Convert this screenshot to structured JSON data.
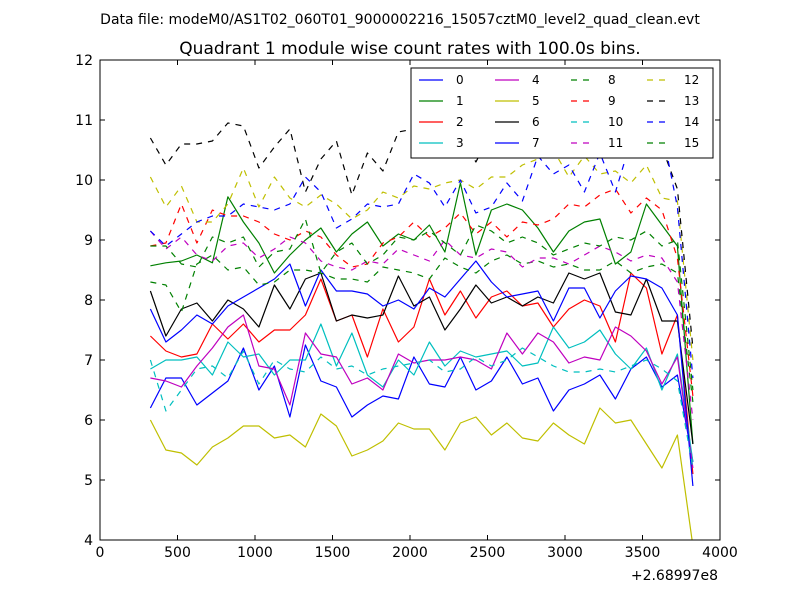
{
  "chart_data": {
    "type": "line",
    "suptitle": "Data file: modeM0/AS1T02_060T01_9000002216_15057cztM0_level2_quad_clean.evt",
    "title": "Quadrant 1 module wise count rates with 100.0s bins.",
    "xlim": [
      0,
      4000
    ],
    "ylim": [
      4,
      12
    ],
    "x_ticks": [
      0,
      500,
      1000,
      1500,
      2000,
      2500,
      3000,
      3500,
      4000
    ],
    "y_ticks": [
      4,
      5,
      6,
      7,
      8,
      9,
      10,
      11,
      12
    ],
    "x_offset_label": "+2.68997e8",
    "grid": false,
    "legend_location": "upper-right",
    "legend_columns": 4,
    "x": [
      325,
      425,
      525,
      625,
      725,
      825,
      925,
      1025,
      1125,
      1225,
      1325,
      1425,
      1525,
      1625,
      1725,
      1825,
      1925,
      2025,
      2125,
      2225,
      2325,
      2425,
      2525,
      2625,
      2725,
      2825,
      2925,
      3025,
      3125,
      3225,
      3325,
      3425,
      3525,
      3625,
      3725,
      3825
    ],
    "series": [
      {
        "name": "0",
        "color": "#0000ff",
        "dash": "solid",
        "values": [
          6.2,
          6.7,
          6.7,
          6.25,
          6.45,
          6.65,
          7.2,
          6.5,
          6.9,
          6.05,
          7.25,
          6.65,
          6.55,
          6.05,
          6.25,
          6.4,
          6.35,
          7.05,
          6.6,
          6.55,
          7.05,
          6.5,
          6.65,
          7.05,
          6.6,
          6.7,
          6.15,
          6.5,
          6.6,
          6.75,
          6.35,
          6.85,
          7.05,
          6.55,
          6.75,
          5.3
        ]
      },
      {
        "name": "1",
        "color": "#008000",
        "dash": "solid",
        "values": [
          8.57,
          8.62,
          8.65,
          8.75,
          8.62,
          9.72,
          9.3,
          8.95,
          8.45,
          8.75,
          9.0,
          9.2,
          8.8,
          9.1,
          9.3,
          8.9,
          9.1,
          9.0,
          9.25,
          8.8,
          9.95,
          8.75,
          9.5,
          9.6,
          9.5,
          9.2,
          8.8,
          9.15,
          9.3,
          9.35,
          8.6,
          8.8,
          9.6,
          9.25,
          8.9,
          5.6
        ]
      },
      {
        "name": "2",
        "color": "#ff0000",
        "dash": "solid",
        "values": [
          7.4,
          7.15,
          7.05,
          7.1,
          7.6,
          7.35,
          7.6,
          7.3,
          7.5,
          7.5,
          7.75,
          8.35,
          7.65,
          7.75,
          7.05,
          7.85,
          7.3,
          7.55,
          8.35,
          7.75,
          8.15,
          7.7,
          8.05,
          8.15,
          7.9,
          7.95,
          7.55,
          7.85,
          8.0,
          7.9,
          7.3,
          8.45,
          8.2,
          7.1,
          7.75,
          5.1
        ]
      },
      {
        "name": "3",
        "color": "#00bfbf",
        "dash": "solid",
        "values": [
          6.85,
          7.0,
          7.0,
          7.05,
          6.75,
          7.3,
          7.05,
          7.1,
          6.75,
          7.0,
          7.0,
          7.6,
          6.9,
          7.45,
          6.75,
          6.55,
          7.0,
          6.75,
          7.3,
          6.9,
          7.15,
          7.05,
          7.1,
          7.15,
          6.9,
          6.95,
          7.55,
          7.2,
          7.3,
          7.5,
          7.1,
          6.85,
          7.2,
          6.5,
          7.1,
          5.3
        ]
      },
      {
        "name": "4",
        "color": "#bf00bf",
        "dash": "solid",
        "values": [
          6.7,
          6.65,
          6.55,
          6.9,
          7.2,
          7.55,
          7.75,
          6.9,
          6.85,
          6.25,
          7.45,
          7.1,
          7.05,
          6.6,
          6.7,
          6.5,
          7.1,
          6.95,
          7.0,
          7.0,
          7.05,
          7.0,
          6.85,
          7.45,
          7.1,
          7.45,
          7.3,
          6.95,
          7.05,
          7.0,
          7.55,
          7.4,
          7.15,
          6.6,
          7.05,
          5.2
        ]
      },
      {
        "name": "5",
        "color": "#bfbf00",
        "dash": "solid",
        "values": [
          6.0,
          5.5,
          5.45,
          5.25,
          5.55,
          5.7,
          5.9,
          5.9,
          5.7,
          5.75,
          5.55,
          6.1,
          5.9,
          5.4,
          5.5,
          5.65,
          5.95,
          5.85,
          5.85,
          5.5,
          5.95,
          6.05,
          5.75,
          5.95,
          5.7,
          5.65,
          5.95,
          5.75,
          5.6,
          6.2,
          5.95,
          6.0,
          5.6,
          5.2,
          5.75,
          3.9
        ]
      },
      {
        "name": "6",
        "color": "#000000",
        "dash": "solid",
        "values": [
          8.15,
          7.4,
          7.85,
          7.95,
          7.65,
          8.0,
          7.85,
          7.55,
          8.25,
          7.85,
          8.35,
          8.45,
          7.65,
          7.75,
          7.7,
          7.75,
          8.4,
          7.9,
          8.05,
          7.5,
          7.85,
          8.25,
          7.95,
          8.05,
          7.9,
          8.05,
          7.95,
          8.45,
          8.35,
          8.45,
          7.8,
          7.75,
          8.35,
          7.65,
          7.65,
          5.6
        ]
      },
      {
        "name": "7",
        "color": "#0000ff",
        "dash": "solid",
        "values": [
          7.85,
          7.3,
          7.5,
          7.75,
          7.6,
          7.9,
          8.05,
          8.2,
          8.35,
          8.6,
          7.9,
          8.5,
          8.15,
          8.15,
          8.1,
          7.9,
          8.0,
          7.85,
          8.2,
          8.05,
          8.35,
          8.65,
          8.3,
          8.05,
          8.1,
          8.15,
          7.65,
          8.2,
          8.2,
          7.7,
          8.15,
          8.4,
          8.35,
          8.2,
          7.75,
          4.9
        ]
      },
      {
        "name": "8",
        "color": "#008000",
        "dash": "dashed",
        "values": [
          8.3,
          8.25,
          7.8,
          8.6,
          8.75,
          8.5,
          8.55,
          8.25,
          8.3,
          8.5,
          8.5,
          8.45,
          8.35,
          8.35,
          8.3,
          8.55,
          8.5,
          8.45,
          8.35,
          8.7,
          8.55,
          8.45,
          8.65,
          8.75,
          8.6,
          8.65,
          8.55,
          8.6,
          8.5,
          8.5,
          8.65,
          8.45,
          8.55,
          8.6,
          8.45,
          6.3
        ]
      },
      {
        "name": "9",
        "color": "#ff0000",
        "dash": "dashed",
        "values": [
          8.9,
          8.95,
          9.6,
          8.95,
          9.5,
          9.4,
          9.4,
          9.3,
          9.1,
          9.0,
          9.15,
          9.05,
          8.75,
          8.55,
          8.6,
          8.95,
          9.05,
          9.3,
          9.05,
          9.2,
          9.45,
          9.1,
          9.3,
          9.05,
          9.3,
          9.25,
          9.35,
          9.6,
          9.55,
          9.75,
          9.85,
          9.45,
          9.7,
          9.5,
          8.7,
          6.4
        ]
      },
      {
        "name": "10",
        "color": "#00bfbf",
        "dash": "dashed",
        "values": [
          7.0,
          6.15,
          6.5,
          6.85,
          6.9,
          6.7,
          7.15,
          6.6,
          7.0,
          6.85,
          6.8,
          7.05,
          6.85,
          6.9,
          6.75,
          6.85,
          6.9,
          6.95,
          7.0,
          6.8,
          6.85,
          7.05,
          6.9,
          7.0,
          7.2,
          7.05,
          6.9,
          6.8,
          6.8,
          6.85,
          6.8,
          6.9,
          7.0,
          6.85,
          6.65,
          5.2
        ]
      },
      {
        "name": "11",
        "color": "#bf00bf",
        "dash": "dashed",
        "values": [
          9.15,
          8.85,
          9.05,
          8.75,
          8.65,
          8.9,
          8.95,
          8.7,
          8.85,
          9.05,
          8.95,
          8.65,
          8.55,
          8.5,
          8.65,
          8.6,
          8.85,
          8.75,
          8.65,
          9.0,
          8.75,
          8.7,
          8.85,
          8.8,
          8.55,
          8.7,
          8.7,
          8.6,
          8.75,
          8.9,
          8.8,
          8.65,
          8.75,
          8.7,
          8.3,
          6.0
        ]
      },
      {
        "name": "12",
        "color": "#bfbf00",
        "dash": "dashed",
        "values": [
          10.05,
          9.55,
          9.9,
          9.3,
          9.3,
          9.6,
          10.2,
          9.55,
          10.05,
          9.7,
          9.55,
          9.75,
          9.6,
          9.35,
          9.5,
          9.8,
          9.7,
          9.9,
          9.85,
          9.95,
          10.0,
          9.85,
          10.05,
          10.05,
          10.25,
          10.35,
          10.5,
          10.05,
          10.4,
          10.1,
          10.15,
          9.95,
          10.25,
          9.7,
          9.65,
          7.0
        ]
      },
      {
        "name": "13",
        "color": "#000000",
        "dash": "dashed",
        "values": [
          10.7,
          10.25,
          10.6,
          10.6,
          10.65,
          10.95,
          10.9,
          10.2,
          10.55,
          10.85,
          9.8,
          10.35,
          10.65,
          9.75,
          10.45,
          10.15,
          10.8,
          10.85,
          10.75,
          10.6,
          10.75,
          10.3,
          10.8,
          10.75,
          11.05,
          11.05,
          10.85,
          10.9,
          10.9,
          10.95,
          10.6,
          10.95,
          10.85,
          10.55,
          9.85,
          7.2
        ]
      },
      {
        "name": "14",
        "color": "#0000ff",
        "dash": "dashed",
        "values": [
          9.15,
          8.9,
          9.1,
          9.3,
          9.4,
          9.4,
          9.6,
          9.55,
          9.5,
          9.6,
          10.05,
          9.8,
          9.2,
          9.35,
          9.6,
          9.55,
          9.6,
          10.1,
          9.95,
          9.55,
          10.0,
          9.45,
          9.55,
          9.95,
          9.65,
          10.4,
          10.1,
          10.25,
          9.8,
          10.45,
          9.8,
          10.65,
          10.75,
          10.85,
          9.55,
          6.7
        ]
      },
      {
        "name": "15",
        "color": "#008000",
        "dash": "dashed",
        "values": [
          8.9,
          8.9,
          8.6,
          8.55,
          9.05,
          8.95,
          9.05,
          8.55,
          8.8,
          8.85,
          9.35,
          8.45,
          8.8,
          8.95,
          8.6,
          8.75,
          9.05,
          9.0,
          9.15,
          8.95,
          8.75,
          9.25,
          9.15,
          8.95,
          9.05,
          8.95,
          8.75,
          8.85,
          8.95,
          8.9,
          9.05,
          9.0,
          9.15,
          8.9,
          9.0,
          6.5
        ]
      }
    ]
  }
}
